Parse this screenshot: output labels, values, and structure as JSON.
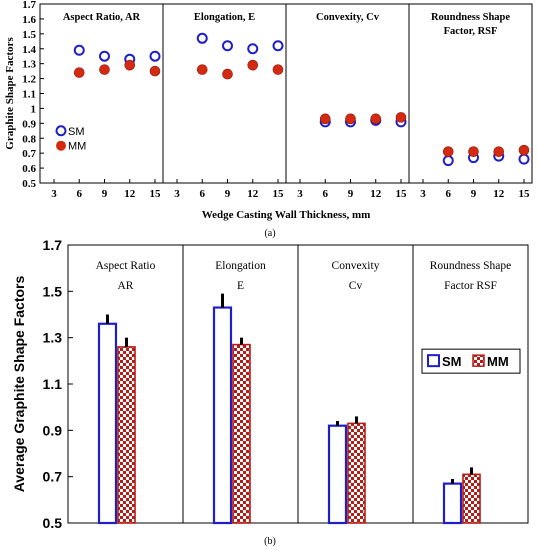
{
  "chart_data": [
    {
      "type": "scatter",
      "ylabel": "Graphite Shape Factors",
      "xlabel": "Wedge Casting Wall Thickness, mm",
      "caption": "(a)",
      "ylim": [
        0.5,
        1.7
      ],
      "yticks": [
        "0.5",
        "0.6",
        "0.7",
        "0.8",
        "0.9",
        "1",
        "1.1",
        "1.2",
        "1.3",
        "1.4",
        "1.5",
        "1.6",
        "1.7"
      ],
      "xticks": [
        "3",
        "6",
        "9",
        "12",
        "15"
      ],
      "legend": [
        "SM",
        "MM"
      ],
      "colors": {
        "SM": "#1f1fc8",
        "MM": "#d42a12"
      },
      "panels": [
        {
          "title": "Aspect Ratio, AR",
          "x": [
            6,
            9,
            12,
            15
          ],
          "series": [
            {
              "name": "SM",
              "values": [
                1.39,
                1.35,
                1.33,
                1.35
              ]
            },
            {
              "name": "MM",
              "values": [
                1.24,
                1.26,
                1.29,
                1.25
              ]
            }
          ]
        },
        {
          "title": "Elongation, E",
          "x": [
            6,
            9,
            12,
            15
          ],
          "series": [
            {
              "name": "SM",
              "values": [
                1.47,
                1.42,
                1.4,
                1.42
              ]
            },
            {
              "name": "MM",
              "values": [
                1.26,
                1.23,
                1.29,
                1.26
              ]
            }
          ]
        },
        {
          "title": "Convexity, Cv",
          "x": [
            6,
            9,
            12,
            15
          ],
          "series": [
            {
              "name": "SM",
              "values": [
                0.91,
                0.91,
                0.92,
                0.91
              ]
            },
            {
              "name": "MM",
              "values": [
                0.93,
                0.93,
                0.93,
                0.94
              ]
            }
          ]
        },
        {
          "title1": "Roundness Shape",
          "title2": "Factor, RSF",
          "x": [
            6,
            9,
            12,
            15
          ],
          "series": [
            {
              "name": "SM",
              "values": [
                0.65,
                0.67,
                0.68,
                0.66
              ]
            },
            {
              "name": "MM",
              "values": [
                0.71,
                0.71,
                0.71,
                0.72
              ]
            }
          ]
        }
      ]
    },
    {
      "type": "bar",
      "ylabel": "Average Graphite Shape Factors",
      "caption": "(b)",
      "ylim": [
        0.5,
        1.7
      ],
      "yticks": [
        "0.5",
        "0.7",
        "0.9",
        "1.1",
        "1.3",
        "1.5",
        "1.7"
      ],
      "legend": [
        "SM",
        "MM"
      ],
      "colors": {
        "SM": "#1f1fc8",
        "MM": "#b51c16"
      },
      "categories": [
        {
          "title1": "Aspect Ratio",
          "title2": "AR"
        },
        {
          "title1": "Elongation",
          "title2": "E"
        },
        {
          "title1": "Convexity",
          "title2": "Cv"
        },
        {
          "title1": "Roundness Shape",
          "title2": "Factor    RSF"
        }
      ],
      "series": [
        {
          "name": "SM",
          "values": [
            1.36,
            1.43,
            0.92,
            0.67
          ],
          "errors": [
            0.04,
            0.06,
            0.02,
            0.02
          ]
        },
        {
          "name": "MM",
          "values": [
            1.26,
            1.27,
            0.93,
            0.71
          ],
          "errors": [
            0.04,
            0.03,
            0.03,
            0.03
          ]
        }
      ]
    }
  ]
}
